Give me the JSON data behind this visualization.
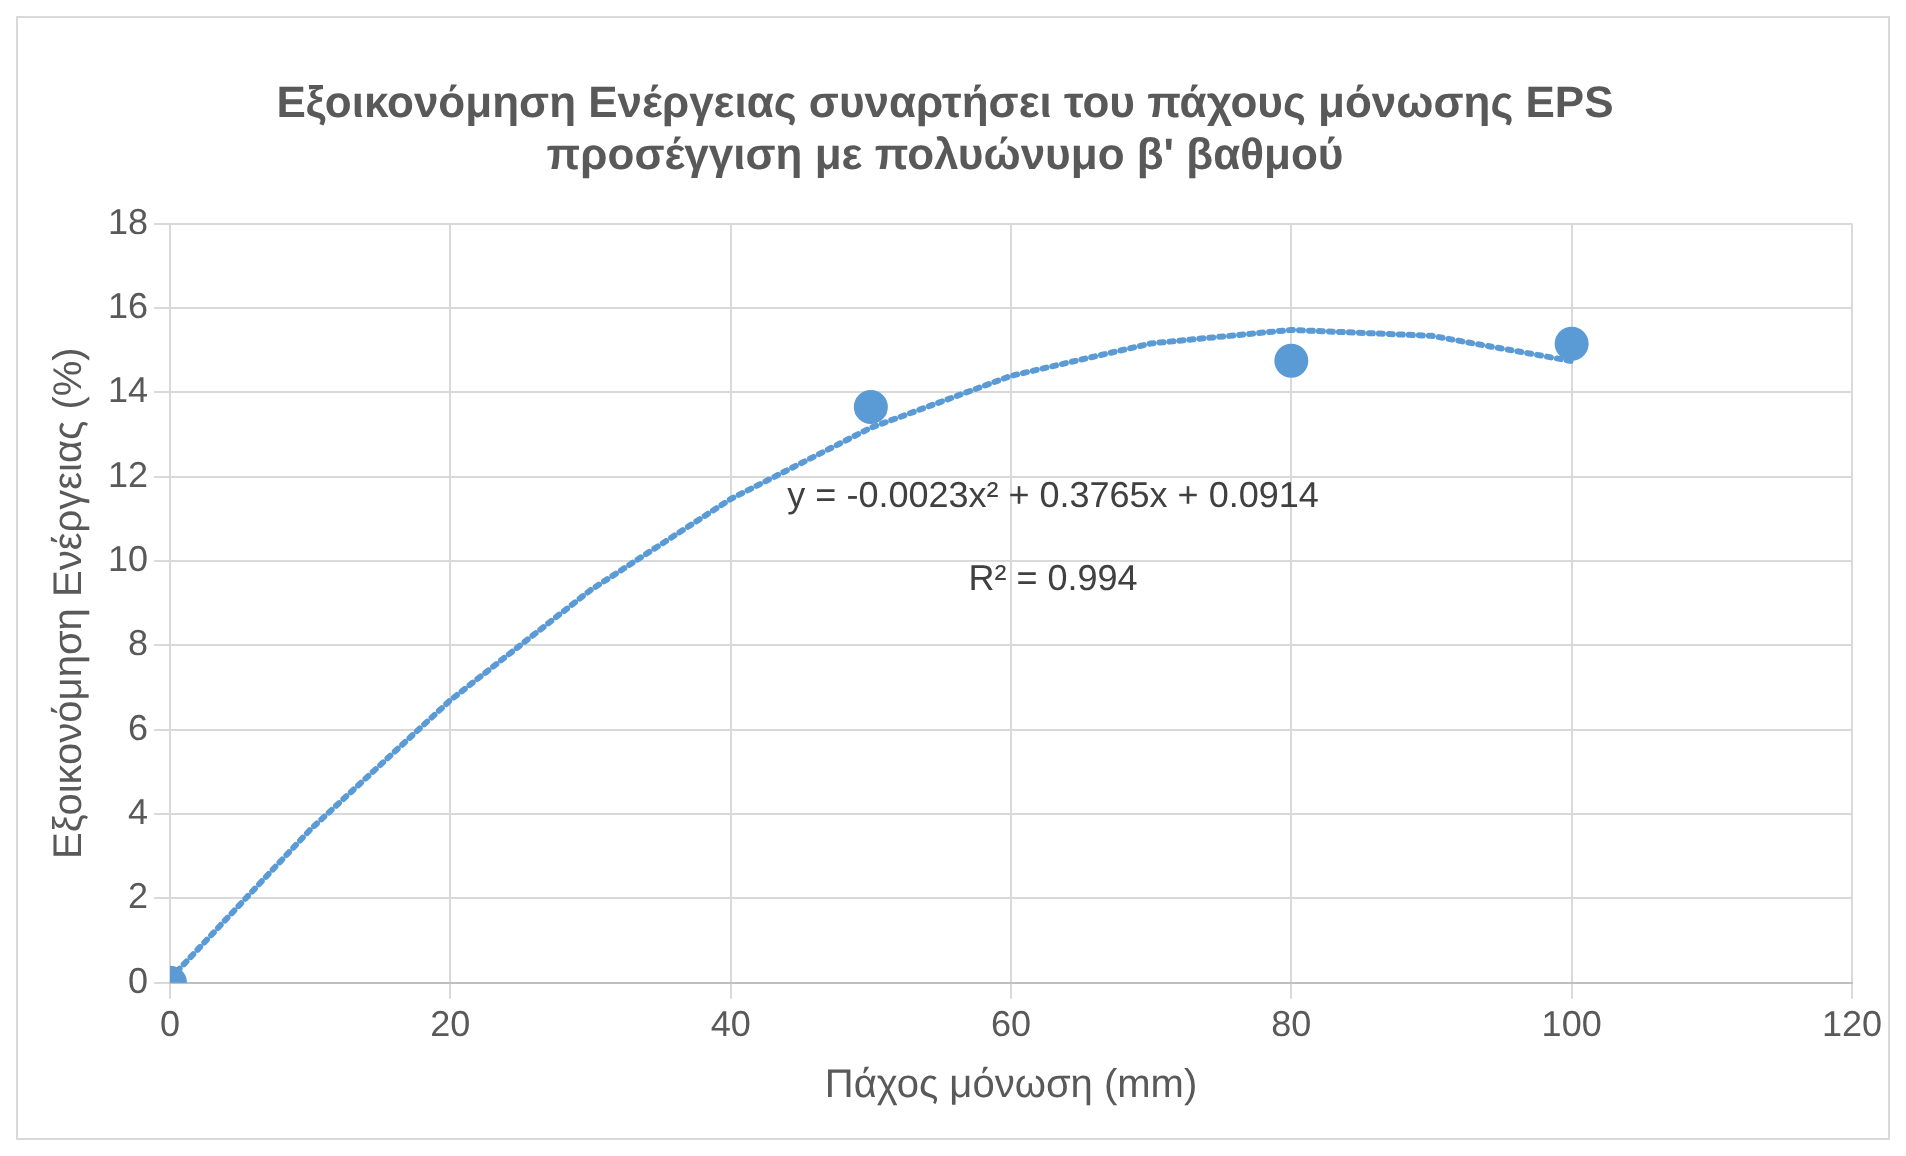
{
  "chart_data": {
    "type": "scatter",
    "title": "Εξοικονόμηση Ενέργειας συναρτήσει του πάχους μόνωσης EPS\nπροσέγγιση με πολυώνυμο β' βαθμού",
    "xlabel": "Πάχος μόνωση (mm)",
    "ylabel": "Εξοικονόμηση Ενέργειας (%)",
    "x": [
      0,
      50,
      80,
      100
    ],
    "values": [
      0,
      13.65,
      14.75,
      15.15
    ],
    "color": "#5b9bd5",
    "marker": "circle",
    "series": [
      {
        "type": "line",
        "line_style": "dotted",
        "color": "#5b9bd5",
        "marker": "none",
        "x": [
          0,
          10,
          20,
          30,
          40,
          50,
          60,
          70,
          80,
          90,
          100
        ],
        "values": [
          0.09,
          3.63,
          6.7,
          9.31,
          11.47,
          13.16,
          14.39,
          15.16,
          15.48,
          15.34,
          14.74
        ]
      }
    ],
    "annotations": [
      "y = -0.0023x² + 0.3765x + 0.0914",
      "R² = 0.994"
    ],
    "xlim": [
      0,
      120
    ],
    "xticks": [
      0,
      20,
      40,
      60,
      80,
      100,
      120
    ],
    "ylim": [
      0,
      18
    ],
    "yticks": [
      0,
      2,
      4,
      6,
      8,
      10,
      12,
      14,
      16,
      18
    ],
    "grid": true,
    "legend": false
  }
}
